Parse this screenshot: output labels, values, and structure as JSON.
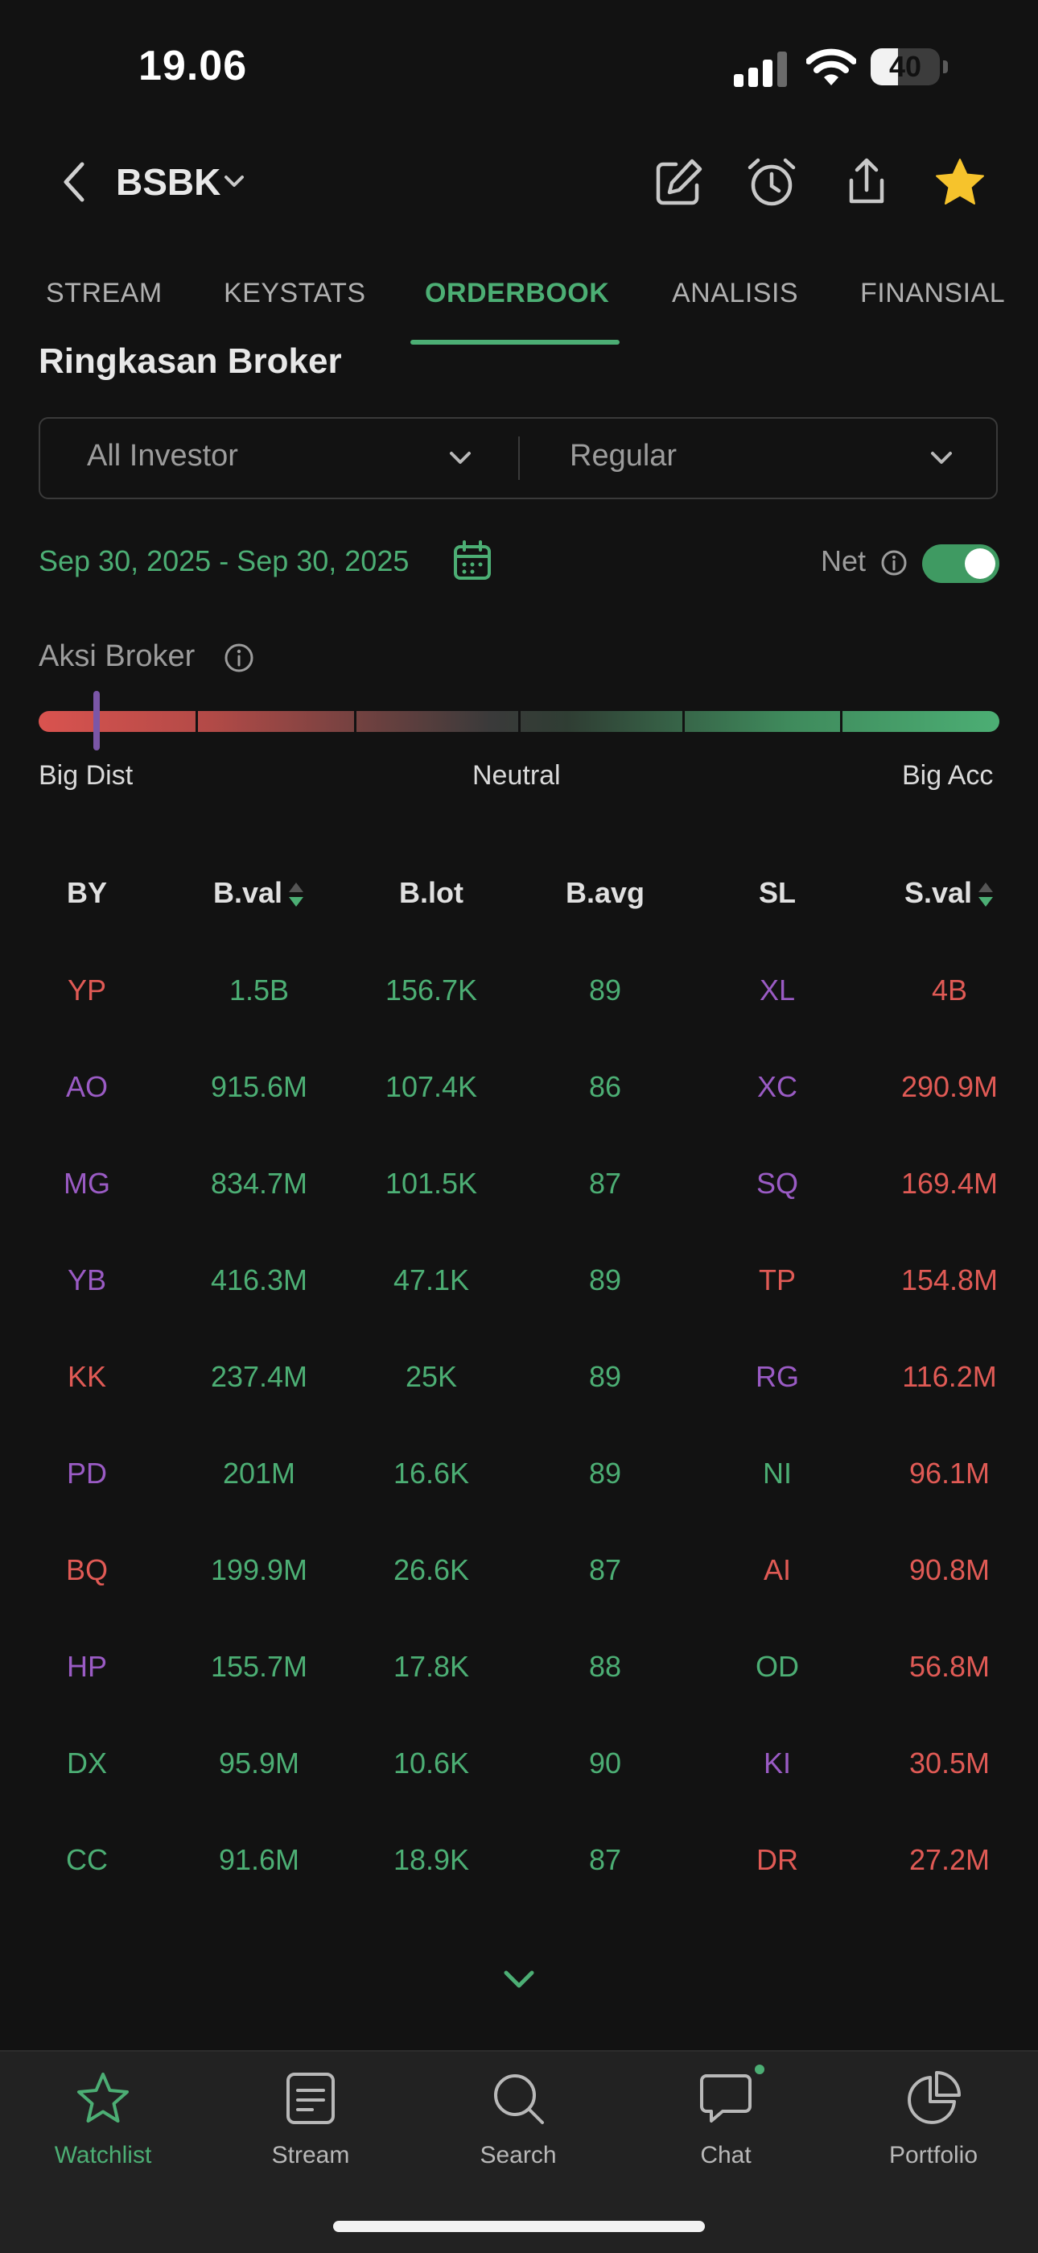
{
  "status_bar": {
    "time": "19.06",
    "battery": "40",
    "battery_level": 0.4
  },
  "header": {
    "ticker": "BSBK",
    "favorited": true
  },
  "tabs": [
    {
      "label": "STREAM",
      "active": false
    },
    {
      "label": "KEYSTATS",
      "active": false
    },
    {
      "label": "ORDERBOOK",
      "active": true
    },
    {
      "label": "ANALISIS",
      "active": false
    },
    {
      "label": "FINANSIAL",
      "active": false
    }
  ],
  "section_title": "Ringkasan Broker",
  "filters": {
    "investor": "All Investor",
    "market": "Regular"
  },
  "date_range": "Sep 30, 2025 - Sep 30, 2025",
  "net": {
    "label": "Net",
    "enabled": true
  },
  "broker_action": {
    "label": "Aksi Broker",
    "scale": {
      "left": "Big Dist",
      "center": "Neutral",
      "right": "Big Acc"
    },
    "level": 0.06
  },
  "table": {
    "headers": [
      "BY",
      "B.val",
      "B.lot",
      "B.avg",
      "SL",
      "S.val"
    ],
    "rows": [
      {
        "by": "YP",
        "by_color": "red",
        "bval": "1.5B",
        "blot": "156.7K",
        "bavg": "89",
        "sl": "XL",
        "sl_color": "purple",
        "sval": "4B"
      },
      {
        "by": "AO",
        "by_color": "purple",
        "bval": "915.6M",
        "blot": "107.4K",
        "bavg": "86",
        "sl": "XC",
        "sl_color": "purple",
        "sval": "290.9M"
      },
      {
        "by": "MG",
        "by_color": "purple",
        "bval": "834.7M",
        "blot": "101.5K",
        "bavg": "87",
        "sl": "SQ",
        "sl_color": "purple",
        "sval": "169.4M"
      },
      {
        "by": "YB",
        "by_color": "purple",
        "bval": "416.3M",
        "blot": "47.1K",
        "bavg": "89",
        "sl": "TP",
        "sl_color": "red",
        "sval": "154.8M"
      },
      {
        "by": "KK",
        "by_color": "red",
        "bval": "237.4M",
        "blot": "25K",
        "bavg": "89",
        "sl": "RG",
        "sl_color": "purple",
        "sval": "116.2M"
      },
      {
        "by": "PD",
        "by_color": "purple",
        "bval": "201M",
        "blot": "16.6K",
        "bavg": "89",
        "sl": "NI",
        "sl_color": "green",
        "sval": "96.1M"
      },
      {
        "by": "BQ",
        "by_color": "red",
        "bval": "199.9M",
        "blot": "26.6K",
        "bavg": "87",
        "sl": "AI",
        "sl_color": "red",
        "sval": "90.8M"
      },
      {
        "by": "HP",
        "by_color": "purple",
        "bval": "155.7M",
        "blot": "17.8K",
        "bavg": "88",
        "sl": "OD",
        "sl_color": "green",
        "sval": "56.8M"
      },
      {
        "by": "DX",
        "by_color": "green",
        "bval": "95.9M",
        "blot": "10.6K",
        "bavg": "90",
        "sl": "KI",
        "sl_color": "purple",
        "sval": "30.5M"
      },
      {
        "by": "CC",
        "by_color": "green",
        "bval": "91.6M",
        "blot": "18.9K",
        "bavg": "87",
        "sl": "DR",
        "sl_color": "red",
        "sval": "27.2M"
      }
    ]
  },
  "bottom_nav": [
    {
      "label": "Watchlist",
      "icon": "star-icon",
      "active": true
    },
    {
      "label": "Stream",
      "icon": "document-icon",
      "active": false
    },
    {
      "label": "Search",
      "icon": "search-icon",
      "active": false
    },
    {
      "label": "Chat",
      "icon": "chat-bubble-icon",
      "active": false
    },
    {
      "label": "Portfolio",
      "icon": "pie-chart-icon",
      "active": false
    }
  ],
  "colors": {
    "accent": "#4cae74",
    "sell": "#e05a55",
    "broker_purple": "#9a5bc4",
    "background": "#121212"
  }
}
